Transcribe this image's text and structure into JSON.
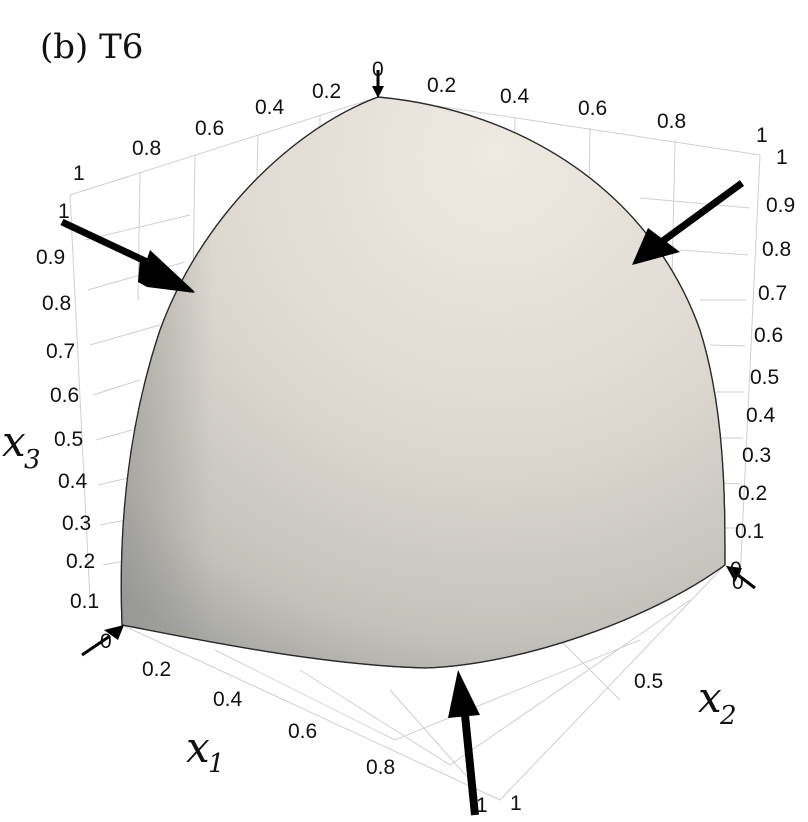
{
  "panel_label": "(b) T6",
  "axes": {
    "x1": {
      "name_base": "x",
      "name_sub": "1",
      "ticks": [
        "0",
        "0.2",
        "0.4",
        "0.6",
        "0.8",
        "1"
      ]
    },
    "x2_front": {
      "name_base": "x",
      "name_sub": "2",
      "ticks": [
        "0",
        "0.5",
        "1"
      ]
    },
    "x2_top": {
      "ticks": [
        "0",
        "0.2",
        "0.4",
        "0.6",
        "0.8",
        "1"
      ]
    },
    "x1_top": {
      "ticks": [
        "0.2",
        "0.4",
        "0.6",
        "0.8",
        "1"
      ]
    },
    "x3_left": {
      "name_base": "x",
      "name_sub": "3",
      "ticks": [
        "0.1",
        "0.2",
        "0.3",
        "0.4",
        "0.5",
        "0.6",
        "0.7",
        "0.8",
        "0.9",
        "1"
      ]
    },
    "x3_right": {
      "ticks": [
        "0",
        "0.1",
        "0.2",
        "0.3",
        "0.4",
        "0.5",
        "0.6",
        "0.7",
        "0.8",
        "0.9",
        "1"
      ]
    }
  },
  "colors": {
    "surface_light": "#ece8df",
    "surface_mid": "#d6d3cb",
    "surface_dark": "#9f9f9c",
    "arrow": "#000000",
    "grid": "#cfcfcf"
  },
  "arrows": [
    {
      "name": "top-arrow"
    },
    {
      "name": "left-arrow"
    },
    {
      "name": "right-arrow"
    },
    {
      "name": "bottom-arrow"
    },
    {
      "name": "left-corner-arrow"
    },
    {
      "name": "right-corner-arrow"
    }
  ]
}
